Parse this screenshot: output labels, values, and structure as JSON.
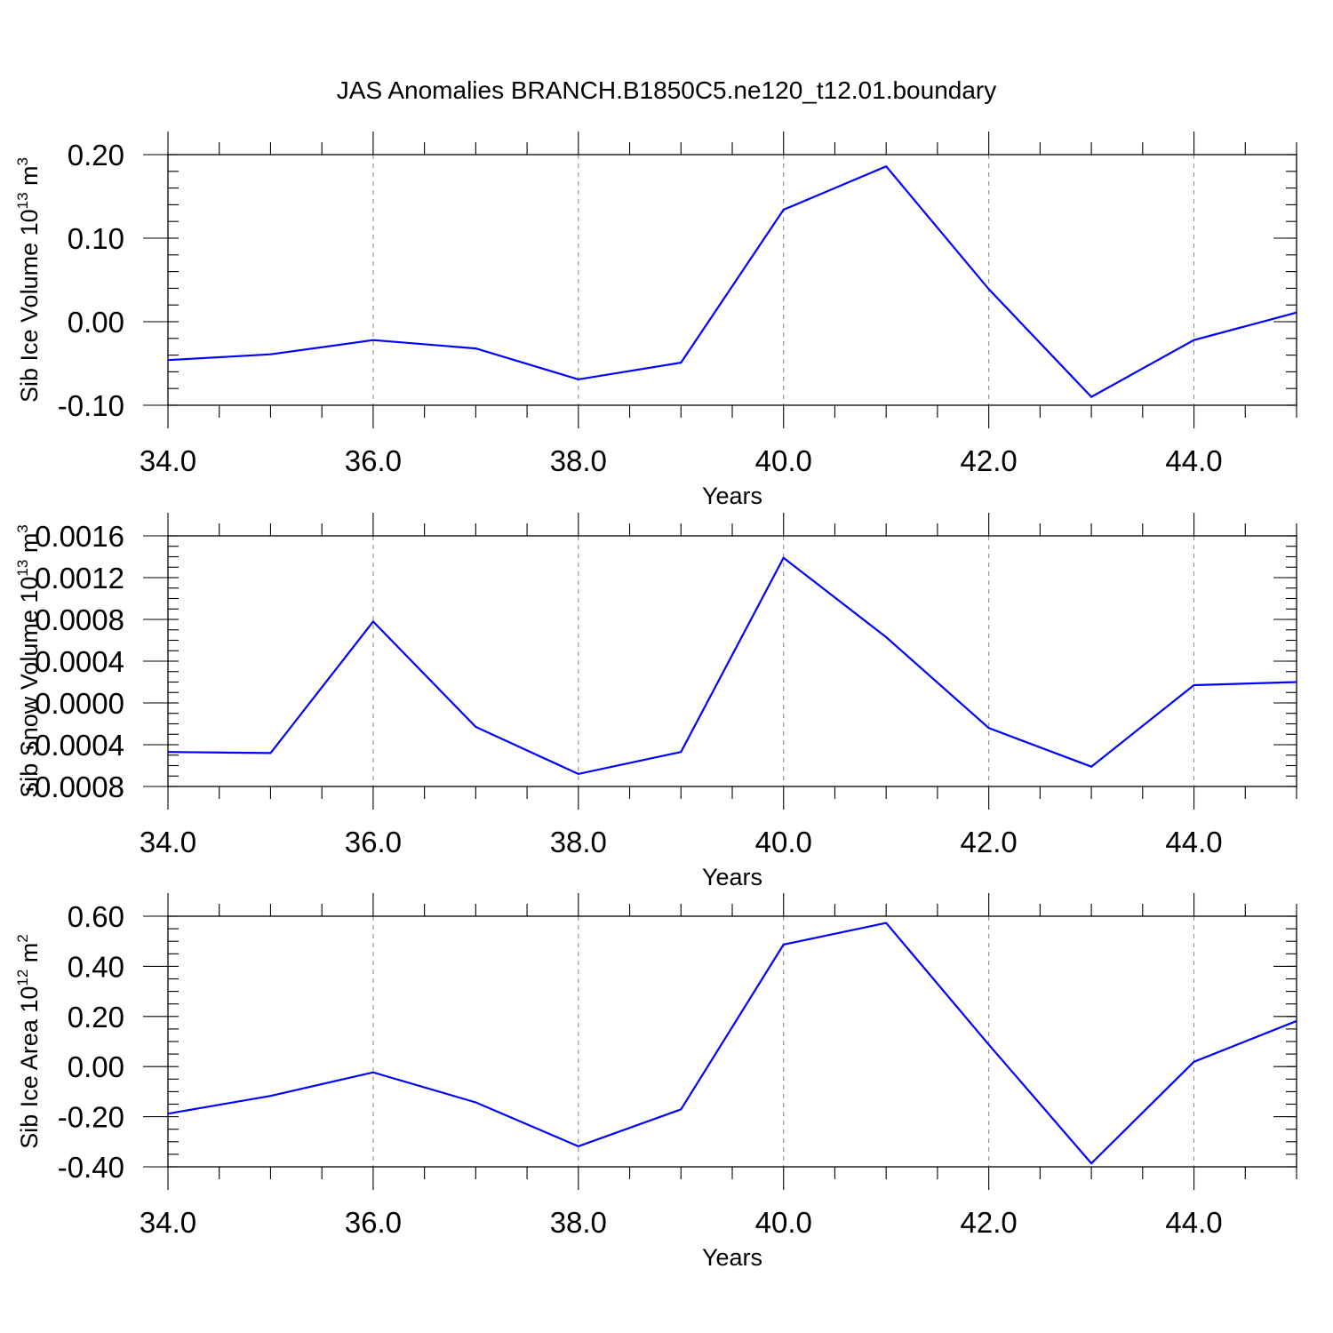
{
  "title": "JAS Anomalies BRANCH.B1850C5.ne120_t12.01.boundary",
  "line_color": "#0000ff",
  "chart_data": [
    {
      "type": "line",
      "title": "JAS Anomalies BRANCH.B1850C5.ne120_t12.01.boundary",
      "xlabel": "Years",
      "ylabel": "Sib Ice Volume 10",
      "ylabel_sup1": "13",
      "ylabel_mid": " m",
      "ylabel_sup2": "3",
      "xlim": [
        34,
        45
      ],
      "ylim": [
        -0.1,
        0.2
      ],
      "xticks": [
        34,
        36,
        38,
        40,
        42,
        44
      ],
      "xtick_labels": [
        "34.0",
        "36.0",
        "38.0",
        "40.0",
        "42.0",
        "44.0"
      ],
      "yticks": [
        -0.1,
        0.0,
        0.1,
        0.2
      ],
      "ytick_labels": [
        "-0.10",
        "0.00",
        "0.10",
        "0.20"
      ],
      "yminor_step": 0.02,
      "x": [
        34,
        35,
        36,
        37,
        38,
        39,
        40,
        41,
        42,
        43,
        44,
        45
      ],
      "values": [
        -0.046,
        -0.039,
        -0.022,
        -0.032,
        -0.069,
        -0.049,
        0.134,
        0.186,
        0.039,
        -0.09,
        -0.022,
        0.011
      ]
    },
    {
      "type": "line",
      "xlabel": "Years",
      "ylabel": "Sib Snow Volume 10",
      "ylabel_sup1": "13",
      "ylabel_mid": " m",
      "ylabel_sup2": "3",
      "xlim": [
        34,
        45
      ],
      "ylim": [
        -0.0008,
        0.0016
      ],
      "xticks": [
        34,
        36,
        38,
        40,
        42,
        44
      ],
      "xtick_labels": [
        "34.0",
        "36.0",
        "38.0",
        "40.0",
        "42.0",
        "44.0"
      ],
      "yticks": [
        -0.0008,
        -0.0004,
        0.0,
        0.0004,
        0.0008,
        0.0012,
        0.0016
      ],
      "ytick_labels": [
        "-0.0008",
        "-0.0004",
        "0.0000",
        "0.0004",
        "0.0008",
        "0.0012",
        "0.0016"
      ],
      "yminor_step": 0.0001,
      "x": [
        34,
        35,
        36,
        37,
        38,
        39,
        40,
        41,
        42,
        43,
        44,
        45
      ],
      "values": [
        -0.00047,
        -0.00048,
        0.00078,
        -0.00023,
        -0.00068,
        -0.00047,
        0.00139,
        0.00063,
        -0.00024,
        -0.00061,
        0.00017,
        0.0002
      ]
    },
    {
      "type": "line",
      "xlabel": "Years",
      "ylabel": "Sib Ice Area 10",
      "ylabel_sup1": "12",
      "ylabel_mid": " m",
      "ylabel_sup2": "2",
      "xlim": [
        34,
        45
      ],
      "ylim": [
        -0.4,
        0.6
      ],
      "xticks": [
        34,
        36,
        38,
        40,
        42,
        44
      ],
      "xtick_labels": [
        "34.0",
        "36.0",
        "38.0",
        "40.0",
        "42.0",
        "44.0"
      ],
      "yticks": [
        -0.4,
        -0.2,
        0.0,
        0.2,
        0.4,
        0.6
      ],
      "ytick_labels": [
        "-0.40",
        "-0.20",
        "0.00",
        "0.20",
        "0.40",
        "0.60"
      ],
      "yminor_step": 0.05,
      "x": [
        34,
        35,
        36,
        37,
        38,
        39,
        40,
        41,
        42,
        43,
        44,
        45
      ],
      "values": [
        -0.188,
        -0.117,
        -0.023,
        -0.143,
        -0.318,
        -0.171,
        0.487,
        0.573,
        0.088,
        -0.386,
        0.019,
        0.182
      ]
    }
  ]
}
